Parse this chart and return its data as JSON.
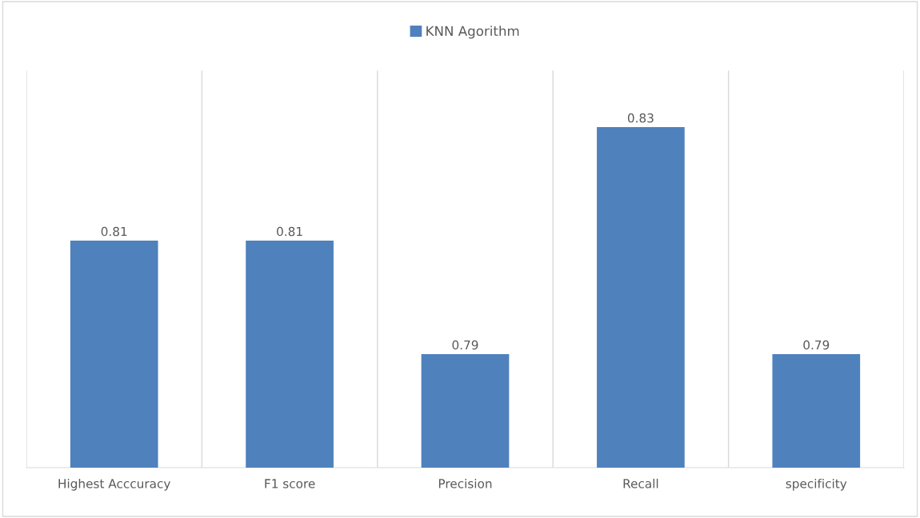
{
  "chart_data": {
    "type": "bar",
    "categories": [
      "Highest Acccuracy",
      "F1 score",
      "Precision",
      "Recall",
      "specificity"
    ],
    "series": [
      {
        "name": "KNN Agorithm",
        "color": "#4f81bd",
        "values": [
          0.81,
          0.81,
          0.79,
          0.83,
          0.79
        ]
      }
    ],
    "ylim": [
      0.77,
      0.84
    ],
    "tick_labels": "x",
    "grid": "x",
    "legend": "top",
    "data_labels": true
  }
}
